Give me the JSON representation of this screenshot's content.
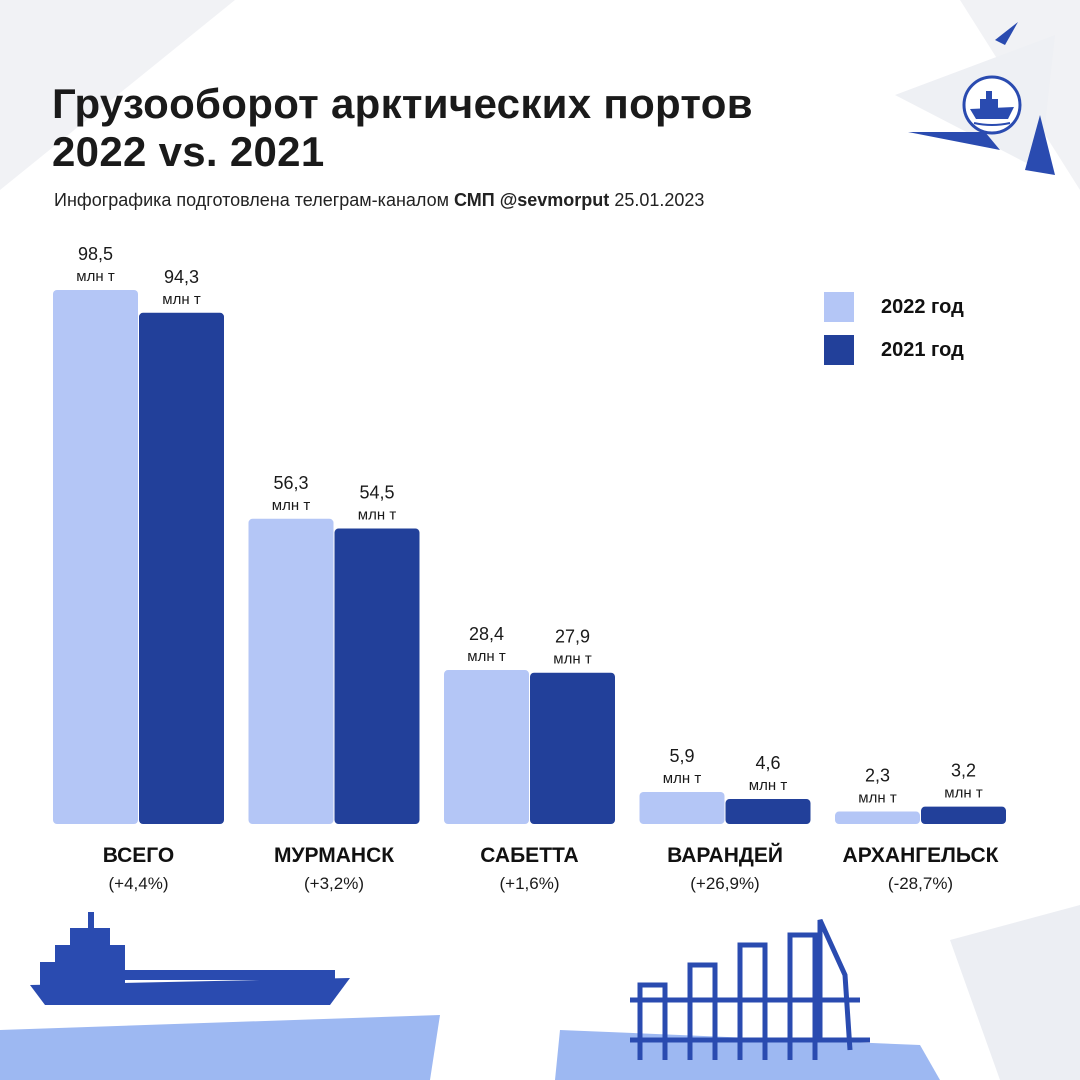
{
  "header": {
    "title_line1": "Грузооборот арктических портов",
    "title_line2": "2022 vs. 2021",
    "subtitle_prefix": "Инфографика подготовлена телеграм-каналом",
    "subtitle_channel": "СМП @sevmorput",
    "subtitle_date": "25.01.2023"
  },
  "colors": {
    "year_2022": "#b4c6f6",
    "year_2021": "#22409a",
    "decor": "#2a4bb0"
  },
  "legend": [
    {
      "label": "2022 год",
      "color": "#b4c6f6"
    },
    {
      "label": "2021 год",
      "color": "#22409a"
    }
  ],
  "chart_data": {
    "type": "bar",
    "unit": "млн т",
    "categories": [
      "ВСЕГО",
      "МУРМАНСК",
      "САБЕТТА",
      "ВАРАНДЕЙ",
      "АРХАНГЕЛЬСК"
    ],
    "changes": [
      "(+4,4%)",
      "(+3,2%)",
      "(+1,6%)",
      "(+26,9%)",
      "(-28,7%)"
    ],
    "series": [
      {
        "name": "2022 год",
        "values": [
          98.5,
          56.3,
          28.4,
          5.9,
          2.3
        ],
        "labels": [
          "98,5",
          "56,3",
          "28,4",
          "5,9",
          "2,3"
        ]
      },
      {
        "name": "2021 год",
        "values": [
          94.3,
          54.5,
          27.9,
          4.6,
          3.2
        ],
        "labels": [
          "94,3",
          "54,5",
          "27,9",
          "4,6",
          "3,2"
        ]
      }
    ],
    "ylim": [
      0,
      98.5
    ],
    "grid": false,
    "legend_position": "top-right"
  }
}
